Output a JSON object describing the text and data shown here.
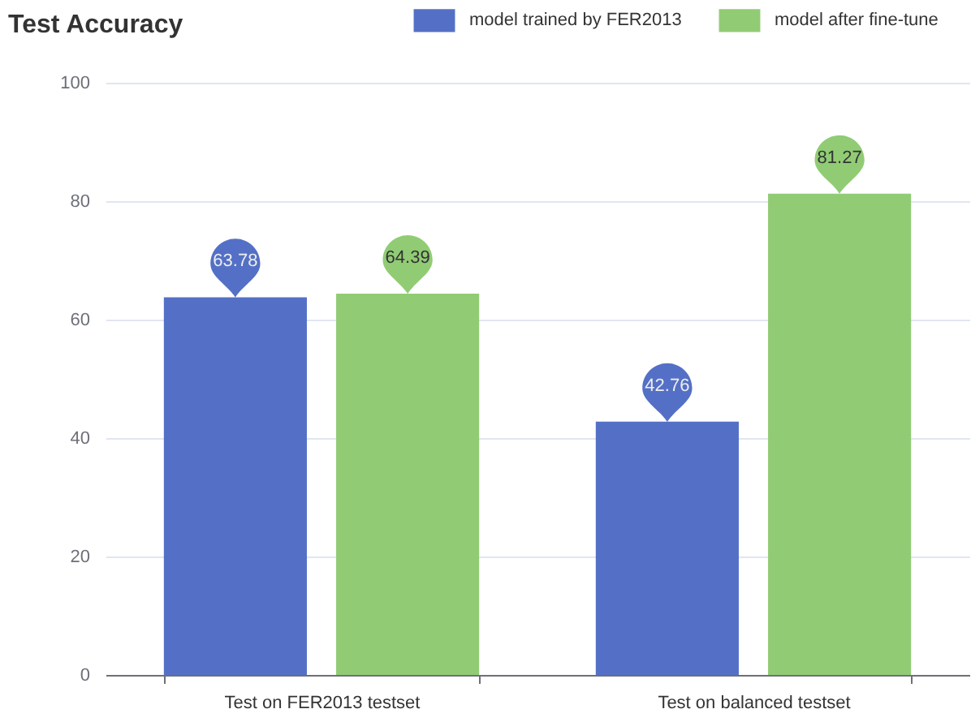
{
  "chart_data": {
    "type": "bar",
    "title": "Test Accuracy",
    "categories": [
      "Test on FER2013 testset",
      "Test on balanced testset"
    ],
    "series": [
      {
        "name": "model trained by FER2013",
        "color": "#5470c6",
        "values": [
          63.78,
          42.76
        ]
      },
      {
        "name": "model after fine-tune",
        "color": "#91cc75",
        "values": [
          64.39,
          81.27
        ]
      }
    ],
    "ylim": [
      0,
      100
    ],
    "yticks": [
      0,
      20,
      40,
      60,
      80,
      100
    ],
    "grid": "y",
    "legend": "top",
    "data_labels": true
  }
}
